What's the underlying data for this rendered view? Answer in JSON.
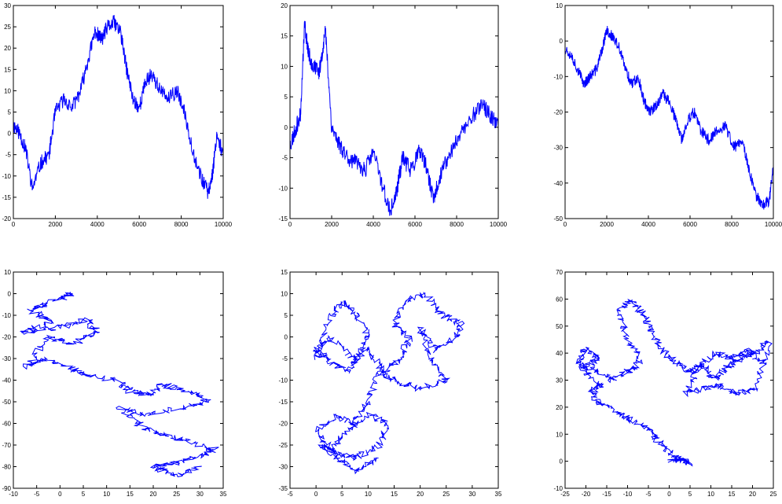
{
  "figure": {
    "line_color": "#0000ff",
    "axes_color": "#000000",
    "background": "#ffffff",
    "grid": false
  },
  "chart_data": [
    {
      "type": "line",
      "xlim": [
        0,
        10000
      ],
      "ylim": [
        -20,
        30
      ],
      "xticks": [
        0,
        2000,
        4000,
        6000,
        8000,
        10000
      ],
      "yticks": [
        -20,
        -15,
        -10,
        -5,
        0,
        5,
        10,
        15,
        20,
        25,
        30
      ],
      "xtick_labels": [
        "0",
        "2000",
        "4000",
        "6000",
        "8000",
        "10000"
      ],
      "ytick_labels": [
        "-20",
        "-15",
        "-10",
        "-5",
        "0",
        "5",
        "10",
        "15",
        "20",
        "25",
        "30"
      ],
      "seed": 11,
      "noise": 1.8,
      "series": [
        {
          "x": [
            0,
            300,
            600,
            900,
            1300,
            1700,
            2000,
            2400,
            2800,
            3200,
            3600,
            3900,
            4200,
            4500,
            4800,
            5100,
            5400,
            5700,
            6000,
            6300,
            6600,
            7000,
            7400,
            7800,
            8200,
            8600,
            9000,
            9300,
            9500,
            9700,
            10000
          ],
          "y": [
            2,
            0,
            -4,
            -13,
            -7,
            -5,
            5,
            8,
            6,
            10,
            18,
            24,
            22,
            25,
            26,
            24,
            15,
            8,
            6,
            12,
            14,
            10,
            8,
            10,
            4,
            -5,
            -11,
            -14,
            -9,
            0,
            -5
          ]
        }
      ]
    },
    {
      "type": "line",
      "xlim": [
        0,
        10000
      ],
      "ylim": [
        -15,
        20
      ],
      "xticks": [
        0,
        2000,
        4000,
        6000,
        8000,
        10000
      ],
      "yticks": [
        -15,
        -10,
        -5,
        0,
        5,
        10,
        15,
        20
      ],
      "xtick_labels": [
        "0",
        "2000",
        "4000",
        "6000",
        "8000",
        "10000"
      ],
      "ytick_labels": [
        "-15",
        "-10",
        "-5",
        "0",
        "5",
        "10",
        "15",
        "20"
      ],
      "seed": 23,
      "noise": 1.4,
      "series": [
        {
          "x": [
            0,
            200,
            500,
            700,
            900,
            1100,
            1400,
            1700,
            2000,
            2400,
            2800,
            3200,
            3600,
            4000,
            4400,
            4800,
            5100,
            5400,
            5800,
            6200,
            6500,
            6900,
            7200,
            7600,
            8000,
            8400,
            8800,
            9200,
            9600,
            10000
          ],
          "y": [
            -3,
            -1,
            2,
            17,
            12,
            10,
            9,
            16,
            0,
            -3,
            -5,
            -6,
            -7,
            -4,
            -9,
            -14,
            -11,
            -5,
            -7,
            -4,
            -6,
            -12,
            -8,
            -5,
            -2,
            0,
            2,
            4,
            2,
            0
          ]
        }
      ]
    },
    {
      "type": "line",
      "xlim": [
        0,
        10000
      ],
      "ylim": [
        -50,
        10
      ],
      "xticks": [
        0,
        2000,
        4000,
        6000,
        8000,
        10000
      ],
      "yticks": [
        -50,
        -40,
        -30,
        -20,
        -10,
        0,
        10
      ],
      "xtick_labels": [
        "0",
        "2000",
        "4000",
        "6000",
        "8000",
        "10000"
      ],
      "ytick_labels": [
        "-50",
        "-40",
        "-30",
        "-20",
        "-10",
        "0",
        "10"
      ],
      "seed": 37,
      "noise": 1.6,
      "series": [
        {
          "x": [
            0,
            300,
            600,
            900,
            1200,
            1500,
            1800,
            2000,
            2300,
            2600,
            2900,
            3200,
            3500,
            3800,
            4100,
            4400,
            4700,
            5000,
            5300,
            5600,
            5900,
            6200,
            6500,
            6900,
            7300,
            7700,
            8100,
            8500,
            8900,
            9200,
            9500,
            9800,
            10000
          ],
          "y": [
            -2,
            -4,
            -8,
            -12,
            -10,
            -8,
            -2,
            3,
            1,
            -2,
            -8,
            -12,
            -10,
            -17,
            -20,
            -18,
            -15,
            -17,
            -22,
            -28,
            -22,
            -20,
            -25,
            -28,
            -25,
            -24,
            -30,
            -28,
            -38,
            -44,
            -46,
            -45,
            -35
          ]
        }
      ]
    },
    {
      "type": "line",
      "xlim": [
        -10,
        35
      ],
      "ylim": [
        -90,
        10
      ],
      "xticks": [
        -10,
        -5,
        0,
        5,
        10,
        15,
        20,
        25,
        30,
        35
      ],
      "yticks": [
        -90,
        -80,
        -70,
        -60,
        -50,
        -40,
        -30,
        -20,
        -10,
        0,
        10
      ],
      "xtick_labels": [
        "-10",
        "-5",
        "0",
        "5",
        "10",
        "15",
        "20",
        "25",
        "30",
        "35"
      ],
      "ytick_labels": [
        "-90",
        "-80",
        "-70",
        "-60",
        "-50",
        "-40",
        "-30",
        "-20",
        "-10",
        "0",
        "10"
      ],
      "seed": 51,
      "noise": 1.1,
      "series": [
        {
          "x": [
            0,
            3,
            -2,
            -6,
            -2,
            -8,
            1,
            6,
            8,
            3,
            -3,
            -7,
            -3,
            3,
            6,
            12,
            15,
            19,
            22,
            27,
            32,
            26,
            18,
            13,
            18,
            22,
            27,
            33,
            30,
            25,
            20,
            25,
            30
          ],
          "y": [
            -2,
            0,
            -4,
            -8,
            -13,
            -18,
            -15,
            -12,
            -18,
            -23,
            -20,
            -34,
            -30,
            -35,
            -38,
            -40,
            -45,
            -47,
            -42,
            -45,
            -50,
            -53,
            -56,
            -53,
            -62,
            -65,
            -68,
            -72,
            -75,
            -78,
            -80,
            -84,
            -80
          ]
        }
      ]
    },
    {
      "type": "line",
      "xlim": [
        -5,
        35
      ],
      "ylim": [
        -35,
        15
      ],
      "xticks": [
        -5,
        0,
        5,
        10,
        15,
        20,
        25,
        30,
        35
      ],
      "yticks": [
        -35,
        -30,
        -25,
        -20,
        -15,
        -10,
        -5,
        0,
        5,
        10,
        15
      ],
      "xtick_labels": [
        "-5",
        "0",
        "5",
        "10",
        "15",
        "20",
        "25",
        "30",
        "35"
      ],
      "ytick_labels": [
        "-35",
        "-30",
        "-25",
        "-20",
        "-15",
        "-10",
        "-5",
        "0",
        "5",
        "10",
        "15"
      ],
      "seed": 67,
      "noise": 0.7,
      "series": [
        {
          "x": [
            0,
            3,
            5,
            8,
            10,
            8,
            6,
            2,
            0,
            3,
            7,
            10,
            13,
            16,
            18,
            15,
            17,
            21,
            24,
            28,
            27,
            23,
            20,
            22,
            25,
            20,
            15,
            12,
            10,
            7,
            4,
            0,
            3,
            6,
            10,
            14,
            12,
            8,
            4,
            1,
            4,
            8,
            12
          ],
          "y": [
            -5,
            5,
            8,
            5,
            0,
            -5,
            -8,
            -5,
            -3,
            0,
            -5,
            -3,
            -8,
            -5,
            0,
            3,
            8,
            10,
            5,
            3,
            0,
            -3,
            2,
            -5,
            -10,
            -12,
            -10,
            -8,
            -15,
            -20,
            -18,
            -22,
            -26,
            -22,
            -18,
            -20,
            -25,
            -28,
            -27,
            -25,
            -28,
            -31,
            -28
          ]
        }
      ]
    },
    {
      "type": "line",
      "xlim": [
        -25,
        25
      ],
      "ylim": [
        -10,
        70
      ],
      "xticks": [
        -25,
        -20,
        -15,
        -10,
        -5,
        0,
        5,
        10,
        15,
        20,
        25
      ],
      "yticks": [
        -10,
        0,
        10,
        20,
        30,
        40,
        50,
        60,
        70
      ],
      "xtick_labels": [
        "-25",
        "-20",
        "-15",
        "-10",
        "-5",
        "0",
        "5",
        "10",
        "15",
        "20",
        "25"
      ],
      "ytick_labels": [
        "-10",
        "0",
        "10",
        "20",
        "30",
        "40",
        "50",
        "60",
        "70"
      ],
      "seed": 89,
      "noise": 1.0,
      "series": [
        {
          "x": [
            0,
            3,
            5,
            1,
            -3,
            -5,
            -9,
            -12,
            -17,
            -19,
            -16,
            -21,
            -17,
            -20,
            -22,
            -18,
            -14,
            -10,
            -7,
            -10,
            -12,
            -9,
            -6,
            -4,
            -1,
            2,
            5,
            8,
            11,
            14,
            17,
            20,
            24,
            21,
            16,
            12,
            8,
            4,
            7,
            11,
            15,
            19,
            23
          ],
          "y": [
            0,
            1,
            -1,
            2,
            8,
            12,
            15,
            18,
            22,
            26,
            28,
            34,
            38,
            42,
            36,
            34,
            30,
            33,
            37,
            45,
            55,
            60,
            54,
            47,
            40,
            36,
            33,
            36,
            30,
            35,
            38,
            40,
            44,
            27,
            25,
            28,
            27,
            25,
            35,
            40,
            38,
            41,
            36
          ]
        }
      ]
    }
  ]
}
